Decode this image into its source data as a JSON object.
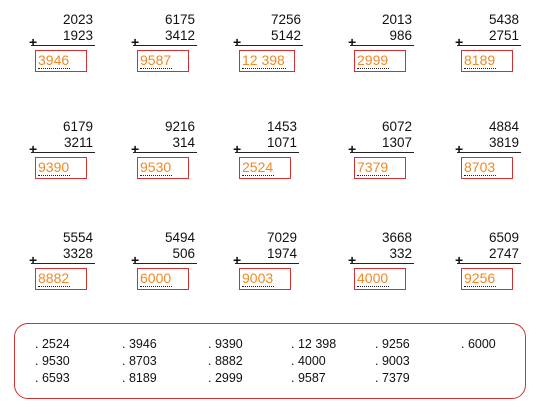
{
  "problems": [
    {
      "addend1": "2023",
      "addend2": "1923",
      "operator": "+",
      "answer": "3946"
    },
    {
      "addend1": "6175",
      "addend2": "3412",
      "operator": "+",
      "answer": "9587"
    },
    {
      "addend1": "7256",
      "addend2": "5142",
      "operator": "+",
      "answer": "12 398"
    },
    {
      "addend1": "2013",
      "addend2": "986",
      "operator": "+",
      "answer": "2999"
    },
    {
      "addend1": "5438",
      "addend2": "2751",
      "operator": "+",
      "answer": "8189"
    },
    {
      "addend1": "6179",
      "addend2": "3211",
      "operator": "+",
      "answer": "9390"
    },
    {
      "addend1": "9216",
      "addend2": "314",
      "operator": "+",
      "answer": "9530"
    },
    {
      "addend1": "1453",
      "addend2": "1071",
      "operator": "+",
      "answer": "2524"
    },
    {
      "addend1": "6072",
      "addend2": "1307",
      "operator": "+",
      "answer": "7379"
    },
    {
      "addend1": "4884",
      "addend2": "3819",
      "operator": "+",
      "answer": "8703"
    },
    {
      "addend1": "5554",
      "addend2": "3328",
      "operator": "+",
      "answer": "8882"
    },
    {
      "addend1": "5494",
      "addend2": "506",
      "operator": "+",
      "answer": "6000"
    },
    {
      "addend1": "7029",
      "addend2": "1974",
      "operator": "+",
      "answer": "9003"
    },
    {
      "addend1": "3668",
      "addend2": "332",
      "operator": "+",
      "answer": "4000"
    },
    {
      "addend1": "6509",
      "addend2": "2747",
      "operator": "+",
      "answer": "9256"
    }
  ],
  "options": [
    [
      ". 2524",
      ". 9530",
      ". 6593"
    ],
    [
      ". 3946",
      ". 8703",
      ". 8189"
    ],
    [
      ". 9390",
      ". 8882",
      ". 2999"
    ],
    [
      ". 12 398",
      ". 4000",
      ". 9587"
    ],
    [
      ". 9256",
      ". 9003",
      ". 7379"
    ],
    [
      ". 6000"
    ]
  ],
  "colors": {
    "answer_text": "#f08a24",
    "box_border": "#d0302f"
  }
}
